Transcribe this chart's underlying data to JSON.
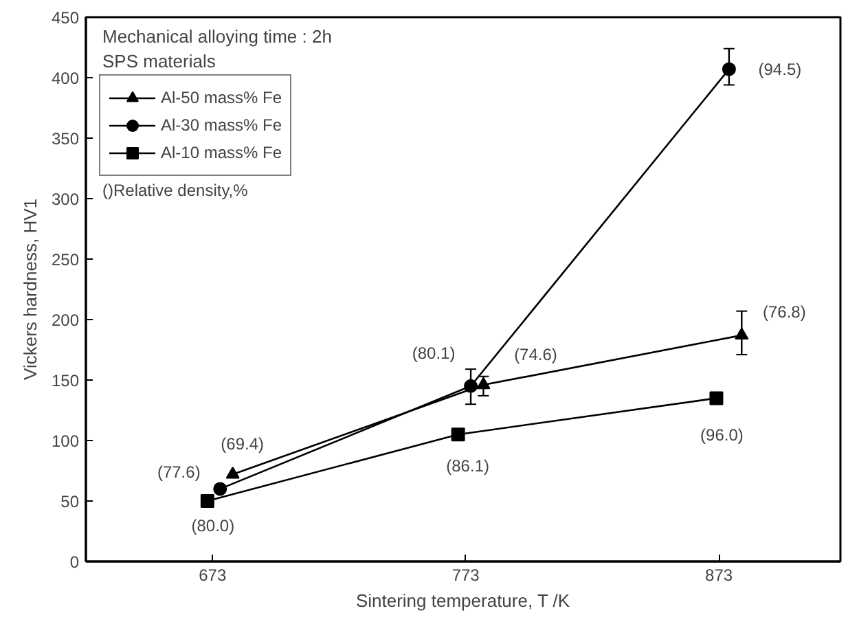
{
  "chart_data": {
    "type": "line",
    "xlabel": "Sintering temperature, T /K",
    "ylabel": "Vickers hardness, HV1",
    "xlim": [
      623,
      921
    ],
    "xticks": [
      673,
      773,
      873
    ],
    "ylim": [
      0,
      450
    ],
    "yticks": [
      0,
      50,
      100,
      150,
      200,
      250,
      300,
      350,
      400,
      450
    ],
    "grid": false,
    "legend": "top left",
    "line_style": "solid",
    "series": [
      {
        "name": "Al-50 mass% Fe",
        "color": "#000000",
        "marker": "triangle",
        "x": [
          681,
          780,
          882
        ],
        "values": [
          72,
          146,
          187
        ],
        "errors": [
          null,
          [
            137,
            153
          ],
          [
            171,
            207
          ]
        ]
      },
      {
        "name": "Al-30 mass% Fe",
        "color": "#000000",
        "marker": "circle",
        "x": [
          676,
          775,
          877
        ],
        "values": [
          60,
          145,
          407
        ],
        "errors": [
          null,
          [
            130,
            159
          ],
          [
            394,
            424
          ]
        ]
      },
      {
        "name": "Al-10 mass% Fe",
        "color": "#000000",
        "marker": "square",
        "x": [
          671,
          770,
          872
        ],
        "values": [
          50,
          105,
          135
        ]
      }
    ],
    "annotations": [
      "Mechanical alloying time : 2h",
      "SPS materials",
      "()Relative density,%",
      {
        "text": "(69.4)",
        "x": 681,
        "y": 72
      },
      {
        "text": "(77.6)",
        "x": 676,
        "y": 60
      },
      {
        "text": "(80.0)",
        "x": 671,
        "y": 50
      },
      {
        "text": "(80.1)",
        "x": 775,
        "y": 145
      },
      {
        "text": "(74.6)",
        "x": 780,
        "y": 146
      },
      {
        "text": "(86.1)",
        "x": 770,
        "y": 105
      },
      {
        "text": "(94.5)",
        "x": 877,
        "y": 407
      },
      {
        "text": "(76.8)",
        "x": 882,
        "y": 187
      },
      {
        "text": "(96.0)",
        "x": 872,
        "y": 135
      }
    ]
  }
}
